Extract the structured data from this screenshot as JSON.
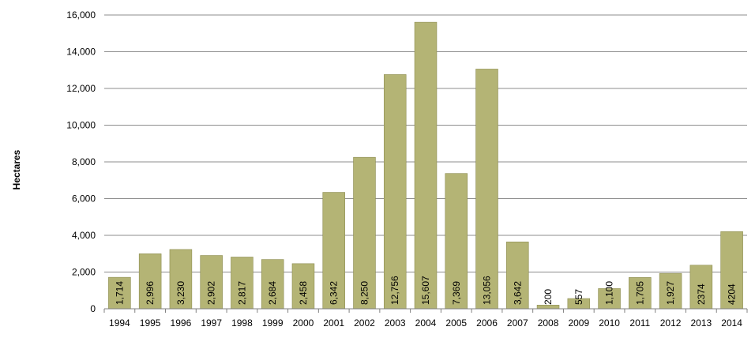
{
  "chart_data": {
    "type": "bar",
    "title": "",
    "xlabel": "",
    "ylabel": "Hectares",
    "ylim": [
      0,
      16000
    ],
    "yticks": [
      "0",
      "2,000",
      "4,000",
      "6,000",
      "8,000",
      "10,000",
      "12,000",
      "14,000",
      "16,000"
    ],
    "ytick_values": [
      0,
      2000,
      4000,
      6000,
      8000,
      10000,
      12000,
      14000,
      16000
    ],
    "grid": true,
    "legend": "none",
    "bar_color": "#b4b475",
    "bar_edge_color": "#8c8c50",
    "categories": [
      "1994",
      "1995",
      "1996",
      "1997",
      "1998",
      "1999",
      "2000",
      "2001",
      "2002",
      "2003",
      "2004",
      "2005",
      "2006",
      "2007",
      "2008",
      "2009",
      "2010",
      "2011",
      "2012",
      "2013",
      "2014"
    ],
    "values": [
      1714,
      2996,
      3230,
      2902,
      2817,
      2684,
      2458,
      6342,
      8250,
      12756,
      15607,
      7369,
      13056,
      3642,
      200,
      557,
      1100,
      1705,
      1927,
      2374,
      4204
    ],
    "data_labels": [
      "1,714",
      "2,996",
      "3,230",
      "2,902",
      "2,817",
      "2,684",
      "2,458",
      "6,342",
      "8,250",
      "12,756",
      "15,607",
      "7,369",
      "13,056",
      "3,642",
      "200",
      "557",
      "1,100",
      "1,705",
      "1,927",
      "2374",
      "4204"
    ]
  }
}
